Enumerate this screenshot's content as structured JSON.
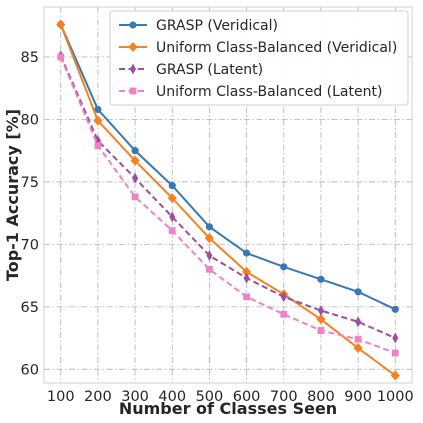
{
  "chart_data": {
    "type": "line",
    "title": "",
    "xlabel": "Number of Classes Seen",
    "ylabel": "Top-1 Accuracy [%]",
    "x": [
      100,
      200,
      300,
      400,
      500,
      600,
      700,
      800,
      900,
      1000
    ],
    "xlim": [
      55,
      1045
    ],
    "ylim": [
      58.9,
      89.0
    ],
    "xticks": [
      100,
      200,
      300,
      400,
      500,
      600,
      700,
      800,
      900,
      1000
    ],
    "yticks": [
      60,
      65,
      70,
      75,
      80,
      85
    ],
    "grid": true,
    "legend_position": "top-right",
    "series": [
      {
        "name": "GRASP (Veridical)",
        "color": "#3a78b0",
        "line": "solid",
        "marker": "circle",
        "values": [
          87.6,
          80.8,
          77.5,
          74.7,
          71.4,
          69.3,
          68.2,
          67.2,
          66.2,
          64.8
        ]
      },
      {
        "name": "Uniform Class-Balanced (Veridical)",
        "color": "#f58220",
        "line": "solid",
        "marker": "diamond",
        "values": [
          87.6,
          79.9,
          76.7,
          73.7,
          70.5,
          67.8,
          66.0,
          64.0,
          61.7,
          59.5
        ]
      },
      {
        "name": "GRASP (Latent)",
        "color": "#9b4f9e",
        "line": "dashed",
        "marker": "thin-diamond",
        "values": [
          85.1,
          78.3,
          75.3,
          72.2,
          69.1,
          67.3,
          65.8,
          64.7,
          63.8,
          62.5
        ]
      },
      {
        "name": "Uniform Class-Balanced (Latent)",
        "color": "#ee82c2",
        "line": "dashed",
        "marker": "square",
        "values": [
          85.0,
          77.9,
          73.8,
          71.1,
          68.0,
          65.8,
          64.4,
          63.1,
          62.4,
          61.3
        ]
      }
    ]
  }
}
